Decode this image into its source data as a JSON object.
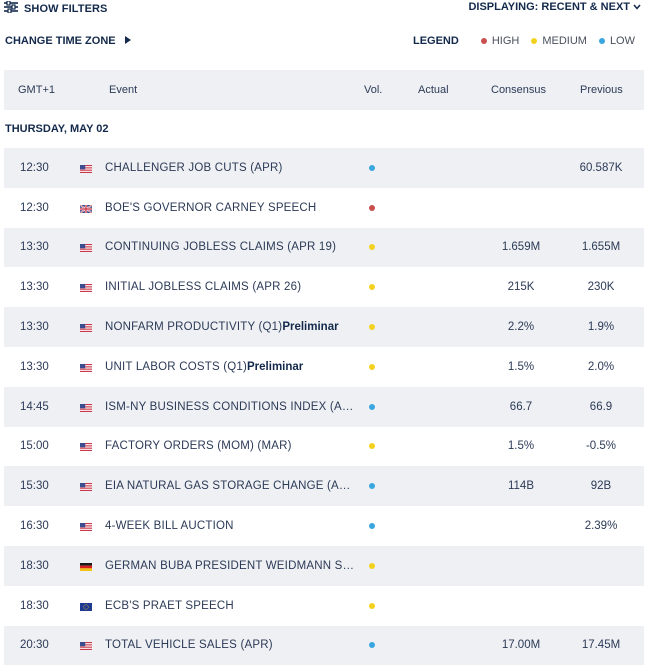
{
  "toolbar": {
    "show_filters": "SHOW FILTERS",
    "displaying": "DISPLAYING: RECENT & NEXT",
    "change_time_zone": "CHANGE TIME ZONE"
  },
  "legend": {
    "title": "LEGEND",
    "high": "HIGH",
    "medium": "MEDIUM",
    "low": "LOW",
    "colors": {
      "high": "#c9504f",
      "medium": "#f3d21f",
      "low": "#3aa6e0"
    }
  },
  "table": {
    "columns": {
      "time": "GMT+1",
      "event": "Event",
      "vol": "Vol.",
      "actual": "Actual",
      "consensus": "Consensus",
      "previous": "Previous"
    },
    "date_header": "THURSDAY, MAY 02",
    "rows": [
      {
        "time": "12:30",
        "flag": "us-flag",
        "event": "CHALLENGER JOB CUTS (APR)",
        "suffix": "",
        "vol": "low",
        "consensus": "",
        "previous": "60.587K"
      },
      {
        "time": "12:30",
        "flag": "uk-flag",
        "event": "BOE'S GOVERNOR CARNEY SPEECH",
        "suffix": "",
        "vol": "high",
        "consensus": "",
        "previous": ""
      },
      {
        "time": "13:30",
        "flag": "us-flag",
        "event": "CONTINUING JOBLESS CLAIMS (APR 19)",
        "suffix": "",
        "vol": "medium",
        "consensus": "1.659M",
        "previous": "1.655M"
      },
      {
        "time": "13:30",
        "flag": "us-flag",
        "event": "INITIAL JOBLESS CLAIMS (APR 26)",
        "suffix": "",
        "vol": "medium",
        "consensus": "215K",
        "previous": "230K"
      },
      {
        "time": "13:30",
        "flag": "us-flag",
        "event": "NONFARM PRODUCTIVITY (Q1)",
        "suffix": "Preliminar",
        "vol": "medium",
        "consensus": "2.2%",
        "previous": "1.9%"
      },
      {
        "time": "13:30",
        "flag": "us-flag",
        "event": "UNIT LABOR COSTS (Q1)",
        "suffix": "Preliminar",
        "vol": "medium",
        "consensus": "1.5%",
        "previous": "2.0%"
      },
      {
        "time": "14:45",
        "flag": "us-flag",
        "event": "ISM-NY BUSINESS CONDITIONS INDEX (A…",
        "suffix": "",
        "vol": "low",
        "consensus": "66.7",
        "previous": "66.9"
      },
      {
        "time": "15:00",
        "flag": "us-flag",
        "event": "FACTORY ORDERS (MOM) (MAR)",
        "suffix": "",
        "vol": "medium",
        "consensus": "1.5%",
        "previous": "-0.5%"
      },
      {
        "time": "15:30",
        "flag": "us-flag",
        "event": "EIA NATURAL GAS STORAGE CHANGE (A…",
        "suffix": "",
        "vol": "low",
        "consensus": "114B",
        "previous": "92B"
      },
      {
        "time": "16:30",
        "flag": "us-flag",
        "event": "4-WEEK BILL AUCTION",
        "suffix": "",
        "vol": "low",
        "consensus": "",
        "previous": "2.39%"
      },
      {
        "time": "18:30",
        "flag": "de-flag",
        "event": "GERMAN BUBA PRESIDENT WEIDMANN S…",
        "suffix": "",
        "vol": "medium",
        "consensus": "",
        "previous": ""
      },
      {
        "time": "18:30",
        "flag": "eu-flag",
        "event": "ECB'S PRAET SPEECH",
        "suffix": "",
        "vol": "medium",
        "consensus": "",
        "previous": ""
      },
      {
        "time": "20:30",
        "flag": "us-flag",
        "event": "TOTAL VEHICLE SALES (APR)",
        "suffix": "",
        "vol": "low",
        "consensus": "17.00M",
        "previous": "17.45M"
      }
    ]
  }
}
